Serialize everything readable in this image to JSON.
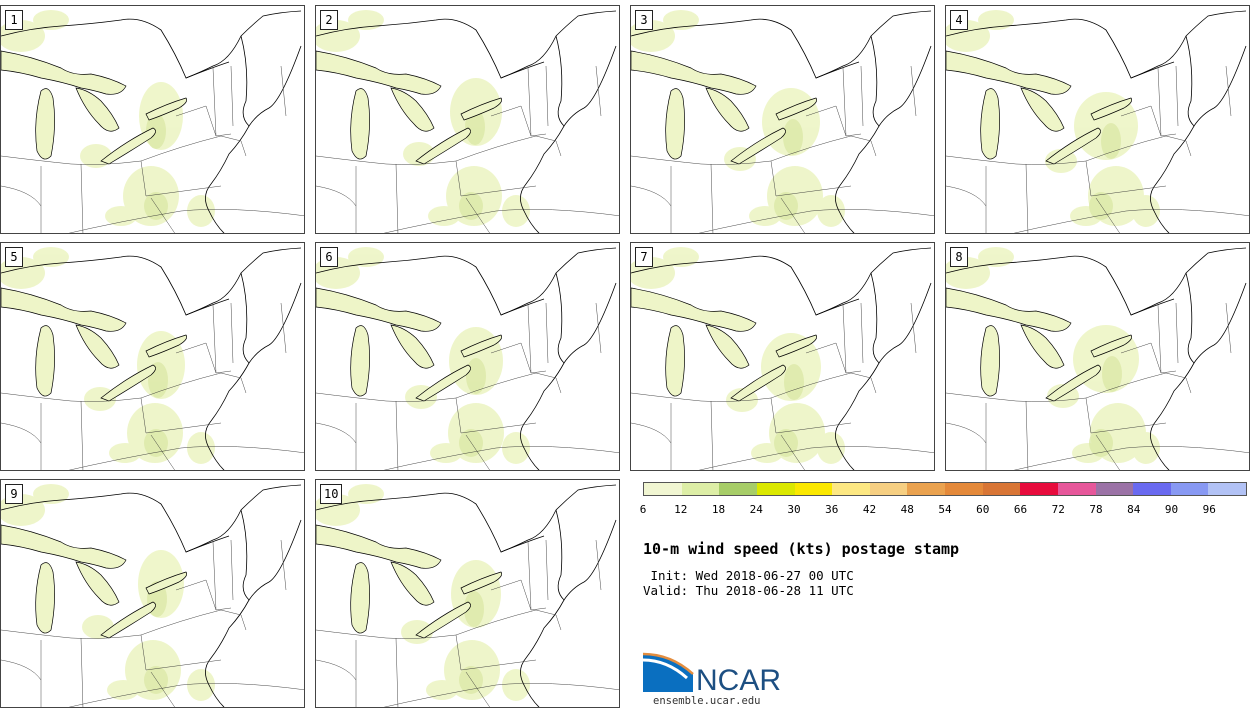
{
  "figure": {
    "title": "10-m wind speed (kts) postage stamp",
    "init": " Init: Wed 2018-06-27 00 UTC",
    "valid": "Valid: Thu 2018-06-28 11 UTC"
  },
  "panels": [
    {
      "label": "1"
    },
    {
      "label": "2"
    },
    {
      "label": "3"
    },
    {
      "label": "4"
    },
    {
      "label": "5"
    },
    {
      "label": "6"
    },
    {
      "label": "7"
    },
    {
      "label": "8"
    },
    {
      "label": "9"
    },
    {
      "label": "10"
    }
  ],
  "colorbar": {
    "colors": [
      "#f1f6d2",
      "#ddeea6",
      "#a7cd68",
      "#dbe800",
      "#fbe800",
      "#fde883",
      "#f6cf82",
      "#eaa24f",
      "#e4893a",
      "#d87535",
      "#e70b3c",
      "#e6579a",
      "#9b72a6",
      "#6a6af0",
      "#8899f3",
      "#b2c2f5"
    ],
    "ticks": [
      "6",
      "12",
      "18",
      "24",
      "30",
      "36",
      "42",
      "48",
      "54",
      "60",
      "66",
      "72",
      "78",
      "84",
      "90",
      "96"
    ]
  },
  "logo": {
    "text": "NCAR",
    "url": "ensemble.ucar.edu",
    "primary_color": "#1d4f82",
    "accent_color": "#e38d3f"
  },
  "map_colors": {
    "wind_light": "#eef5c8",
    "wind_mid": "#dce9a8",
    "lines": "#000000"
  }
}
